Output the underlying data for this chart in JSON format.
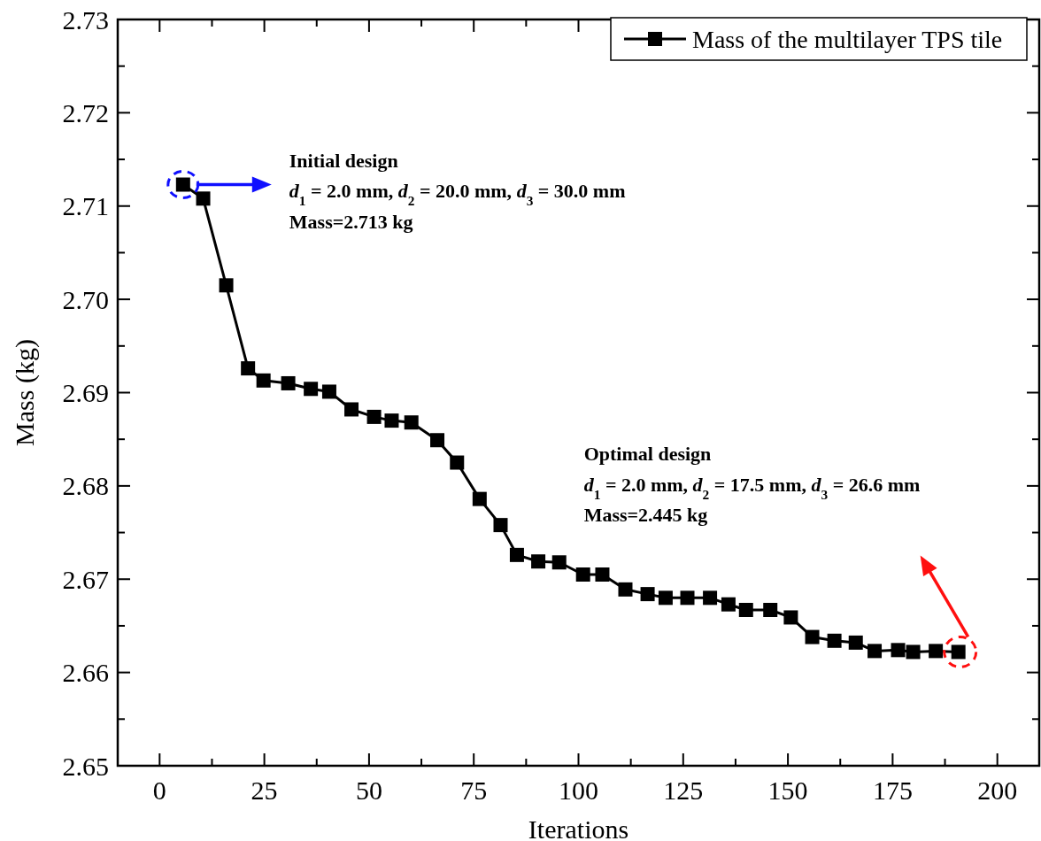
{
  "chart_data": {
    "type": "line",
    "xlabel": "Iterations",
    "ylabel": "Mass (kg)",
    "xlim": [
      -10,
      210
    ],
    "xticks": [
      0,
      25,
      50,
      75,
      100,
      125,
      150,
      175,
      200
    ],
    "ylim": [
      2.65,
      2.73
    ],
    "yticks": [
      {
        "value": 2.65,
        "label": "2.65"
      },
      {
        "value": 2.66,
        "label": "2.66"
      },
      {
        "value": 2.67,
        "label": "2.67"
      },
      {
        "value": 2.68,
        "label": "2.68"
      },
      {
        "value": 2.69,
        "label": "2.69"
      },
      {
        "value": 2.7,
        "label": "2.70"
      },
      {
        "value": 2.71,
        "label": "2.71"
      },
      {
        "value": 2.72,
        "label": "2.72"
      },
      {
        "value": 2.73,
        "label": "2.73"
      }
    ],
    "legend": "top right",
    "marker": "square",
    "line_style": "solid",
    "grid": false,
    "series": [
      {
        "name": "Mass of the multilayer TPS tile",
        "color": "#000000",
        "x": [
          5.6,
          10.4,
          15.9,
          21.1,
          24.8,
          30.7,
          36.1,
          40.5,
          45.8,
          51.2,
          55.4,
          60.1,
          66.3,
          71,
          76.4,
          81.4,
          85.3,
          90.4,
          95.4,
          101.1,
          105.7,
          111.2,
          116.5,
          120.8,
          126,
          131.4,
          135.8,
          140,
          145.8,
          150.7,
          155.8,
          161.1,
          166.2,
          170.7,
          176.3,
          179.9,
          185.3,
          190.7
        ],
        "values": [
          2.7123,
          2.7108,
          2.7015,
          2.6926,
          2.6913,
          2.691,
          2.6904,
          2.6901,
          2.6882,
          2.6874,
          2.687,
          2.6868,
          2.6849,
          2.6825,
          2.6786,
          2.6758,
          2.6726,
          2.6719,
          2.6718,
          2.6705,
          2.6705,
          2.6689,
          2.6684,
          2.668,
          2.668,
          2.668,
          2.6673,
          2.6667,
          2.6667,
          2.6659,
          2.6638,
          2.6634,
          2.6632,
          2.6623,
          2.6624,
          2.6622,
          2.6623,
          2.6622
        ]
      }
    ],
    "annotations": [
      "Initial design",
      "d$_{1}$ = 2.0 mm, d$_{2}$ = 20.0 mm, d$_{3}$ = 30.0 mm",
      "Mass=2.713 kg",
      "Optimal design",
      "d$_{1}$ = 2.0 mm, d$_{2}$ = 17.5 mm, d$_{3}$ = 26.6 mm",
      "Mass=2.445 kg"
    ]
  }
}
